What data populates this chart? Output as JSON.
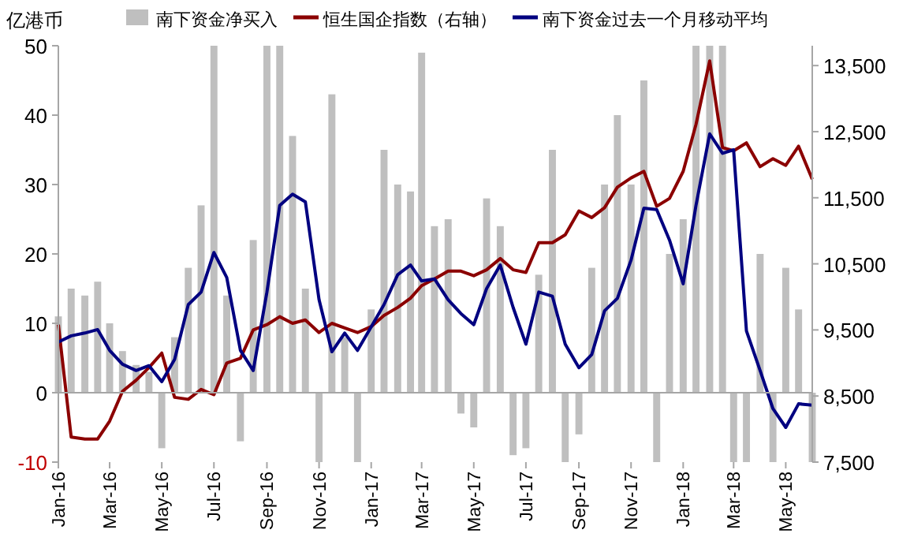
{
  "chart_data": {
    "type": "bar",
    "ylabel": "亿港币",
    "legend": "top",
    "x": [
      "2016-01-01",
      "2016-01-16",
      "2016-02-01",
      "2016-02-16",
      "2016-03-01",
      "2016-03-16",
      "2016-04-01",
      "2016-04-16",
      "2016-05-01",
      "2016-05-16",
      "2016-06-01",
      "2016-06-16",
      "2016-07-01",
      "2016-07-16",
      "2016-08-01",
      "2016-08-16",
      "2016-09-01",
      "2016-09-16",
      "2016-10-01",
      "2016-10-16",
      "2016-11-01",
      "2016-11-16",
      "2016-12-01",
      "2016-12-16",
      "2017-01-01",
      "2017-01-16",
      "2017-02-01",
      "2017-02-16",
      "2017-03-01",
      "2017-03-16",
      "2017-04-01",
      "2017-04-16",
      "2017-05-01",
      "2017-05-16",
      "2017-06-01",
      "2017-06-16",
      "2017-07-01",
      "2017-07-16",
      "2017-08-01",
      "2017-08-16",
      "2017-09-01",
      "2017-09-16",
      "2017-10-01",
      "2017-10-16",
      "2017-11-01",
      "2017-11-16",
      "2017-12-01",
      "2017-12-16",
      "2018-01-01",
      "2018-01-16",
      "2018-02-01",
      "2018-02-16",
      "2018-03-01",
      "2018-03-16",
      "2018-04-01",
      "2018-04-16",
      "2018-05-01",
      "2018-05-16",
      "2018-06-01"
    ],
    "series": [
      {
        "name": "南下资金净买入",
        "color": "#bfbfbf",
        "values": [
          11,
          15,
          14,
          16,
          10,
          6,
          4,
          3,
          -8,
          8,
          18,
          27,
          50,
          14,
          -7,
          22,
          50,
          50,
          37,
          15,
          -10,
          43,
          8,
          -10,
          12,
          35,
          30,
          29,
          49,
          24,
          25,
          -3,
          -5,
          28,
          24,
          -9,
          -8,
          17,
          35,
          -10,
          -6,
          18,
          30,
          40,
          30,
          45,
          -10,
          20,
          25,
          50,
          50,
          50,
          -10,
          -10,
          20,
          -10,
          18,
          12,
          -10
        ]
      },
      {
        "name": "恒生国企指数（右轴）",
        "type": "line",
        "axis": "y2",
        "color": "#8b0000",
        "values": [
          9580,
          7880,
          7850,
          7850,
          8120,
          8570,
          8740,
          8930,
          9150,
          8480,
          8450,
          8600,
          8520,
          9000,
          9070,
          9500,
          9580,
          9700,
          9600,
          9650,
          9460,
          9600,
          9530,
          9460,
          9550,
          9720,
          9840,
          9980,
          10170,
          10270,
          10390,
          10390,
          10320,
          10410,
          10580,
          10410,
          10370,
          10820,
          10820,
          10940,
          11300,
          11200,
          11350,
          11660,
          11800,
          11900,
          11370,
          11490,
          11900,
          12610,
          13570,
          12260,
          12210,
          12330,
          11970,
          12090,
          11990,
          12280,
          11780
        ]
      },
      {
        "name": "南下资金过去一个月移动平均",
        "type": "line",
        "color": "#000080",
        "values": [
          7.3,
          8.2,
          8.6,
          9.1,
          6.1,
          4.1,
          3.2,
          3.9,
          1.6,
          4.8,
          12.7,
          14.5,
          20.2,
          16.6,
          6.1,
          3.2,
          14.5,
          27,
          28.6,
          27.5,
          13.4,
          5.9,
          8.6,
          6.1,
          9.5,
          12.7,
          17,
          18.4,
          16.1,
          16.4,
          13.4,
          11.4,
          9.8,
          15,
          18.4,
          12.3,
          7,
          14.5,
          13.9,
          7,
          3.6,
          5.5,
          11.8,
          13.6,
          19.1,
          26.6,
          26.4,
          22,
          15.7,
          27,
          37.3,
          34.5,
          35,
          8.9,
          3.2,
          -2.3,
          -5,
          -1.6,
          -1.8
        ]
      }
    ],
    "xlim": [
      "2016-01-01",
      "2018-06-01"
    ],
    "xticks": [
      {
        "value": "2016-01-01",
        "label": "Jan-16"
      },
      {
        "value": "2016-03-01",
        "label": "Mar-16"
      },
      {
        "value": "2016-05-01",
        "label": "May-16"
      },
      {
        "value": "2016-07-01",
        "label": "Jul-16"
      },
      {
        "value": "2016-09-01",
        "label": "Sep-16"
      },
      {
        "value": "2016-11-01",
        "label": "Nov-16"
      },
      {
        "value": "2017-01-01",
        "label": "Jan-17"
      },
      {
        "value": "2017-03-01",
        "label": "Mar-17"
      },
      {
        "value": "2017-05-01",
        "label": "May-17"
      },
      {
        "value": "2017-07-01",
        "label": "Jul-17"
      },
      {
        "value": "2017-09-01",
        "label": "Sep-17"
      },
      {
        "value": "2017-11-01",
        "label": "Nov-17"
      },
      {
        "value": "2018-01-01",
        "label": "Jan-18"
      },
      {
        "value": "2018-03-01",
        "label": "Mar-18"
      },
      {
        "value": "2018-05-01",
        "label": "May-18"
      }
    ],
    "ylim": [
      -10,
      50
    ],
    "yticks": [
      -10,
      0,
      10,
      20,
      30,
      40,
      50
    ],
    "y2lim": [
      7500,
      13800
    ],
    "y2ticks": [
      {
        "value": 7500,
        "label": "7,500"
      },
      {
        "value": 8500,
        "label": "8,500"
      },
      {
        "value": 9500,
        "label": "9,500"
      },
      {
        "value": 10500,
        "label": "10,500"
      },
      {
        "value": 11500,
        "label": "11,500"
      },
      {
        "value": 12500,
        "label": "12,500"
      },
      {
        "value": 13500,
        "label": "13,500"
      }
    ]
  }
}
